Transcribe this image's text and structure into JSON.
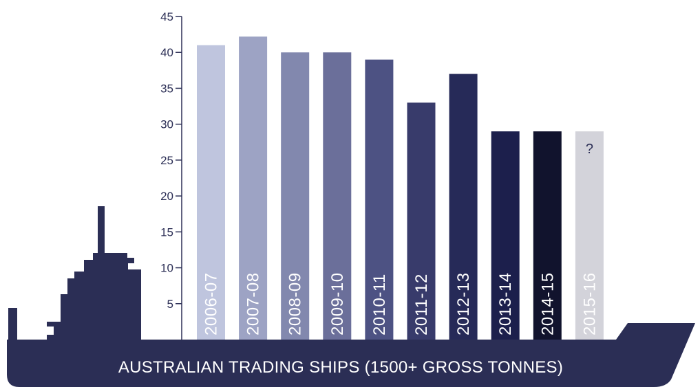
{
  "chart_data": {
    "type": "bar",
    "title": "AUSTRALIAN TRADING SHIPS (1500+ GROSS TONNES)",
    "categories": [
      "2006-07",
      "2007-08",
      "2008-09",
      "2009-10",
      "2010-11",
      "2011-12",
      "2012-13",
      "2013-14",
      "2014-15",
      "2015-16"
    ],
    "values": [
      41,
      42.2,
      40,
      40,
      39,
      33,
      37,
      29,
      29,
      29
    ],
    "bar_colors": [
      "#bfc5de",
      "#9da3c4",
      "#8288ae",
      "#6b6f9a",
      "#4d5283",
      "#383b6b",
      "#262a58",
      "#1c1f4c",
      "#11132d",
      "#d3d3da"
    ],
    "unknown_marker": "?",
    "unknown_category": "2015-16",
    "y_ticks": [
      5,
      10,
      15,
      20,
      25,
      30,
      35,
      40,
      45
    ],
    "ylim": [
      0,
      45
    ],
    "xlabel": "",
    "ylabel": "",
    "grid": false,
    "colors": {
      "hull": "#2b2e55",
      "axis": "#2b2e55"
    }
  }
}
